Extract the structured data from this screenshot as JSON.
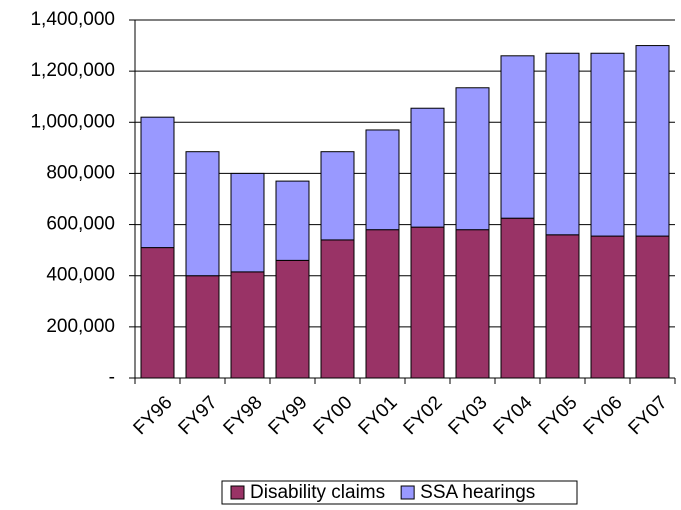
{
  "chart_data": {
    "type": "stacked-bar",
    "categories": [
      "FY96",
      "FY97",
      "FY98",
      "FY99",
      "FY00",
      "FY01",
      "FY02",
      "FY03",
      "FY04",
      "FY05",
      "FY06",
      "FY07"
    ],
    "series": [
      {
        "name": "Disability claims",
        "color": "#993366",
        "values": [
          510000,
          400000,
          415000,
          460000,
          540000,
          580000,
          590000,
          580000,
          625000,
          560000,
          555000,
          555000
        ]
      },
      {
        "name": "SSA hearings",
        "color": "#9999ff",
        "values": [
          510000,
          485000,
          385000,
          310000,
          345000,
          390000,
          465000,
          555000,
          635000,
          710000,
          715000,
          745000
        ]
      }
    ],
    "ylim": [
      0,
      1400000
    ],
    "yticks": [
      {
        "value": 0,
        "label": "-"
      },
      {
        "value": 200000,
        "label": "200,000"
      },
      {
        "value": 400000,
        "label": "400,000"
      },
      {
        "value": 600000,
        "label": "600,000"
      },
      {
        "value": 800000,
        "label": "800,000"
      },
      {
        "value": 1000000,
        "label": "1,000,000"
      },
      {
        "value": 1200000,
        "label": "1,200,000"
      },
      {
        "value": 1400000,
        "label": "1,400,000"
      }
    ],
    "grid": true,
    "legend": "bottom"
  }
}
